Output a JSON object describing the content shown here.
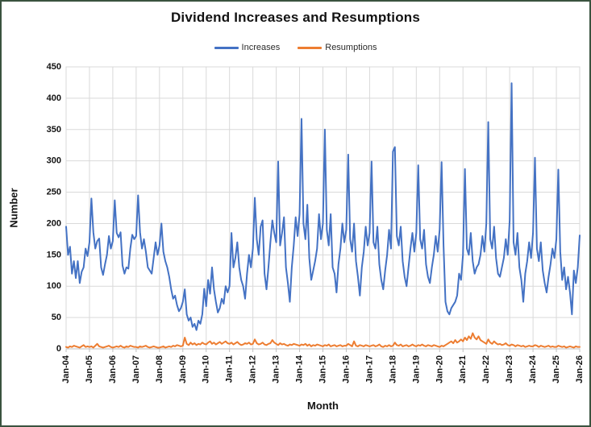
{
  "window": {
    "background": "#ffffff",
    "border_color": "#3a533f"
  },
  "chart_data": {
    "type": "line",
    "title": "Dividend Increases and Resumptions",
    "xlabel": "Month",
    "ylabel": "Number",
    "ylim": [
      0,
      450
    ],
    "y_ticks": [
      0,
      50,
      100,
      150,
      200,
      250,
      300,
      350,
      400,
      450
    ],
    "x_ticks": [
      "Jan-04",
      "Jan-05",
      "Jan-06",
      "Jan-07",
      "Jan-08",
      "Jan-09",
      "Jan-10",
      "Jan-11",
      "Jan-12",
      "Jan-13",
      "Jan-14",
      "Jan-15",
      "Jan-16",
      "Jan-17",
      "Jan-18",
      "Jan-19",
      "Jan-20",
      "Jan-21",
      "Jan-22",
      "Jan-23",
      "Jan-24",
      "Jan-25",
      "Jan-26"
    ],
    "x_interval": "monthly",
    "x_months_per_tick": 12,
    "grid": true,
    "gridline_color": "#d9d9d9",
    "axis_color": "#bfbfbf",
    "legend_position": "top",
    "series": [
      {
        "name": "Increases",
        "color": "#4472C4",
        "values": [
          195,
          150,
          163,
          120,
          140,
          113,
          140,
          105,
          123,
          130,
          160,
          148,
          170,
          240,
          186,
          160,
          172,
          176,
          130,
          118,
          135,
          150,
          180,
          160,
          172,
          237,
          185,
          178,
          186,
          133,
          120,
          130,
          128,
          160,
          182,
          175,
          180,
          245,
          186,
          160,
          175,
          155,
          130,
          125,
          120,
          145,
          170,
          150,
          165,
          200,
          155,
          140,
          130,
          115,
          95,
          80,
          85,
          70,
          60,
          65,
          75,
          95,
          55,
          45,
          50,
          35,
          40,
          30,
          45,
          40,
          55,
          96,
          68,
          110,
          88,
          130,
          95,
          75,
          58,
          65,
          80,
          72,
          100,
          90,
          100,
          185,
          130,
          145,
          170,
          130,
          110,
          100,
          80,
          120,
          150,
          130,
          160,
          241,
          175,
          150,
          195,
          205,
          120,
          95,
          130,
          170,
          205,
          185,
          170,
          299,
          165,
          185,
          210,
          130,
          105,
          75,
          130,
          165,
          210,
          180,
          215,
          367,
          200,
          175,
          230,
          145,
          110,
          125,
          140,
          160,
          215,
          175,
          200,
          350,
          190,
          165,
          215,
          130,
          120,
          90,
          135,
          160,
          200,
          170,
          190,
          310,
          175,
          155,
          200,
          140,
          115,
          85,
          130,
          155,
          195,
          165,
          185,
          299,
          170,
          160,
          195,
          135,
          110,
          95,
          125,
          150,
          190,
          160,
          315,
          322,
          180,
          165,
          195,
          140,
          115,
          100,
          130,
          160,
          185,
          155,
          185,
          293,
          175,
          160,
          190,
          135,
          115,
          105,
          130,
          150,
          180,
          155,
          190,
          298,
          165,
          75,
          60,
          55,
          65,
          70,
          75,
          85,
          120,
          110,
          150,
          287,
          160,
          150,
          185,
          140,
          120,
          130,
          135,
          150,
          180,
          155,
          200,
          362,
          175,
          160,
          195,
          145,
          120,
          115,
          130,
          145,
          175,
          150,
          205,
          424,
          170,
          150,
          185,
          130,
          110,
          75,
          120,
          140,
          170,
          145,
          185,
          305,
          160,
          140,
          170,
          125,
          105,
          90,
          115,
          135,
          160,
          145,
          175,
          286,
          155,
          110,
          130,
          95,
          115,
          90,
          55,
          125,
          105,
          130,
          181
        ]
      },
      {
        "name": "Resumptions",
        "color": "#ED7D31",
        "values": [
          3,
          2,
          4,
          3,
          5,
          4,
          3,
          2,
          4,
          6,
          3,
          4,
          3,
          4,
          2,
          5,
          8,
          4,
          3,
          2,
          3,
          4,
          5,
          3,
          2,
          3,
          4,
          3,
          5,
          3,
          2,
          4,
          3,
          5,
          4,
          3,
          3,
          2,
          4,
          3,
          4,
          5,
          3,
          2,
          3,
          4,
          3,
          2,
          2,
          3,
          4,
          2,
          3,
          4,
          3,
          5,
          4,
          6,
          5,
          4,
          5,
          18,
          8,
          6,
          10,
          7,
          9,
          6,
          8,
          7,
          10,
          8,
          7,
          10,
          12,
          8,
          10,
          7,
          9,
          11,
          8,
          10,
          12,
          9,
          8,
          10,
          7,
          9,
          11,
          8,
          6,
          7,
          9,
          8,
          10,
          7,
          8,
          15,
          9,
          7,
          8,
          10,
          7,
          6,
          8,
          9,
          14,
          10,
          8,
          6,
          9,
          7,
          8,
          6,
          5,
          7,
          6,
          8,
          7,
          6,
          5,
          7,
          6,
          8,
          5,
          7,
          4,
          6,
          5,
          7,
          6,
          5,
          4,
          6,
          5,
          7,
          4,
          5,
          6,
          4,
          5,
          6,
          4,
          5,
          5,
          8,
          6,
          4,
          12,
          5,
          4,
          6,
          5,
          4,
          6,
          5,
          4,
          5,
          6,
          4,
          5,
          7,
          4,
          3,
          5,
          4,
          6,
          4,
          5,
          10,
          6,
          5,
          7,
          4,
          5,
          6,
          4,
          5,
          7,
          5,
          4,
          6,
          5,
          7,
          5,
          4,
          6,
          5,
          4,
          6,
          5,
          4,
          3,
          5,
          4,
          6,
          8,
          10,
          12,
          9,
          14,
          10,
          12,
          15,
          12,
          18,
          14,
          20,
          16,
          25,
          18,
          15,
          20,
          14,
          12,
          10,
          8,
          15,
          10,
          8,
          12,
          9,
          7,
          8,
          6,
          7,
          9,
          6,
          5,
          7,
          6,
          4,
          6,
          5,
          4,
          5,
          3,
          4,
          5,
          4,
          4,
          6,
          5,
          3,
          5,
          4,
          3,
          4,
          5,
          3,
          4,
          3,
          3,
          5,
          4,
          3,
          4,
          2,
          3,
          4,
          3,
          2,
          4,
          3,
          3
        ]
      }
    ]
  }
}
